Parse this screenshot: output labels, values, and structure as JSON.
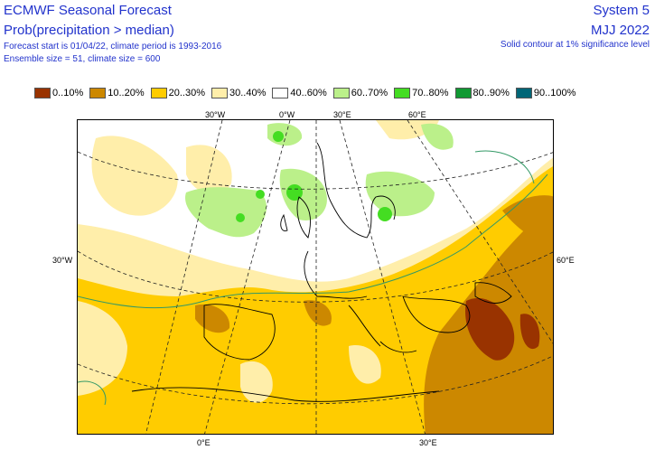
{
  "header": {
    "title": "ECMWF Seasonal Forecast",
    "subtitle": "Prob(precipitation > median)",
    "line1": "Forecast start is 01/04/22, climate period is 1993-2016",
    "line2": "Ensemble size = 51, climate size = 600",
    "system": "System 5",
    "season": "MJJ 2022",
    "significance": "Solid contour at 1% significance level"
  },
  "legend": [
    {
      "label": "0..10%",
      "color": "#993300"
    },
    {
      "label": "10..20%",
      "color": "#cc8800"
    },
    {
      "label": "20..30%",
      "color": "#ffcc00"
    },
    {
      "label": "30..40%",
      "color": "#ffeeaa"
    },
    {
      "label": "40..60%",
      "color": "#ffffff"
    },
    {
      "label": "60..70%",
      "color": "#bbf08a"
    },
    {
      "label": "70..80%",
      "color": "#44dd22"
    },
    {
      "label": "80..90%",
      "color": "#119933"
    },
    {
      "label": "90..100%",
      "color": "#006677"
    }
  ],
  "axis_labels": {
    "top": [
      "30°W",
      "0°W",
      "30°E",
      "60°E"
    ],
    "left": "30°W",
    "right": "60°E",
    "bottom": [
      "0°E",
      "30°E"
    ]
  }
}
